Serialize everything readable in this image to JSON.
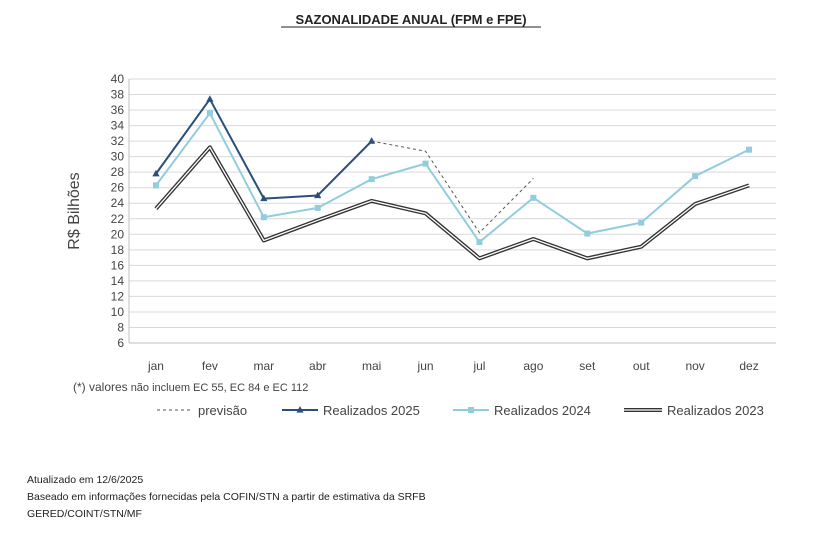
{
  "chart_data": {
    "type": "line",
    "title": "SAZONALIDADE ANUAL (FPM e FPE)",
    "ylabel": "R$ Bilhões",
    "xlabel": "",
    "ylim": [
      6,
      40
    ],
    "yticks": [
      6,
      8,
      10,
      12,
      14,
      16,
      18,
      20,
      22,
      24,
      26,
      28,
      30,
      32,
      34,
      36,
      38,
      40
    ],
    "grid": true,
    "legend_position": "bottom",
    "categories": [
      "jan",
      "fev",
      "mar",
      "abr",
      "mai",
      "jun",
      "jul",
      "ago",
      "set",
      "out",
      "nov",
      "dez"
    ],
    "note_prefix": "(*) valores",
    "note_suffix": "não incluem EC 55, EC 84 e EC 112",
    "series": [
      {
        "name": "previsão",
        "color": "#555555",
        "style": "dashed",
        "values": [
          null,
          null,
          null,
          null,
          32.0,
          30.7,
          20.2,
          27.2,
          null,
          null,
          null,
          null
        ]
      },
      {
        "name": "Realizados 2025",
        "color": "#2b4f7a",
        "style": "solid-triangle",
        "values": [
          27.8,
          37.4,
          24.6,
          25.0,
          32.0,
          null,
          null,
          null,
          null,
          null,
          null,
          null
        ]
      },
      {
        "name": "Realizados 2024",
        "color": "#92cddc",
        "style": "solid-square",
        "values": [
          26.3,
          35.6,
          22.2,
          23.4,
          27.1,
          29.1,
          19.0,
          24.7,
          20.1,
          21.5,
          27.5,
          30.9
        ]
      },
      {
        "name": "Realizados 2023",
        "color": "#333333",
        "style": "double",
        "values": [
          23.3,
          31.2,
          19.2,
          21.8,
          24.3,
          22.7,
          16.9,
          19.4,
          16.9,
          18.4,
          23.9,
          26.3
        ]
      }
    ]
  },
  "footer": {
    "updated": "Atualizado em 12/6/2025",
    "source": "Baseado em informações fornecidas pela COFIN/STN a partir de estimativa da SRFB",
    "dept": "GERED/COINT/STN/MF"
  }
}
